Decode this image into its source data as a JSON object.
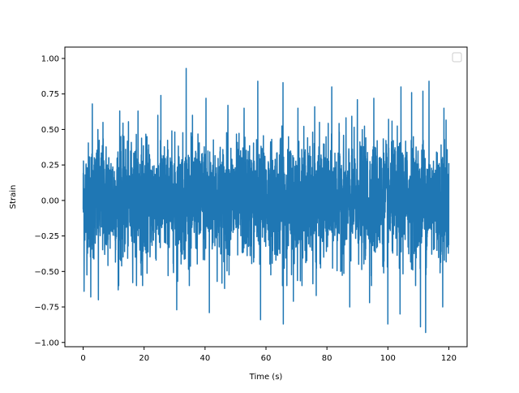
{
  "chart_data": {
    "type": "line",
    "title": "",
    "xlabel": "Time (s)",
    "ylabel": "Strain",
    "xlim": [
      -6,
      126
    ],
    "ylim": [
      -1.03,
      1.08
    ],
    "xticks": [
      0,
      20,
      40,
      60,
      80,
      100,
      120
    ],
    "xtick_labels": [
      "0",
      "20",
      "40",
      "60",
      "80",
      "100",
      "120"
    ],
    "yticks": [
      -1.0,
      -0.75,
      -0.5,
      -0.25,
      0.0,
      0.25,
      0.5,
      0.75,
      1.0
    ],
    "ytick_labels": [
      "−1.00",
      "−0.75",
      "−0.50",
      "−0.25",
      "0.00",
      "0.25",
      "0.50",
      "0.75",
      "1.00"
    ],
    "grid": false,
    "legend": {
      "position": "upper right",
      "entries": []
    },
    "series_color": "#1f77b4",
    "series": [
      {
        "x_range": [
          0,
          120
        ],
        "approx_envelope_max": 1.0,
        "approx_envelope_min": -0.93,
        "peaks": [
          {
            "x": 0.3,
            "y": 0.62
          },
          {
            "x": 3.0,
            "y": 0.68
          },
          {
            "x": 6.5,
            "y": 0.55
          },
          {
            "x": 12.0,
            "y": 0.63
          },
          {
            "x": 18.0,
            "y": 0.63
          },
          {
            "x": 25.5,
            "y": 0.74
          },
          {
            "x": 33.8,
            "y": 0.93
          },
          {
            "x": 40.3,
            "y": 0.72
          },
          {
            "x": 47.5,
            "y": 0.67
          },
          {
            "x": 52.8,
            "y": 0.65
          },
          {
            "x": 57.3,
            "y": 0.84
          },
          {
            "x": 65.6,
            "y": 0.83
          },
          {
            "x": 70.5,
            "y": 0.65
          },
          {
            "x": 76.0,
            "y": 0.66
          },
          {
            "x": 81.6,
            "y": 0.8
          },
          {
            "x": 87.5,
            "y": 0.72
          },
          {
            "x": 90.0,
            "y": 0.71
          },
          {
            "x": 95.4,
            "y": 0.72
          },
          {
            "x": 100.0,
            "y": 1.0
          },
          {
            "x": 104.3,
            "y": 0.8
          },
          {
            "x": 107.8,
            "y": 0.76
          },
          {
            "x": 111.5,
            "y": 0.77
          },
          {
            "x": 113.5,
            "y": 0.84
          },
          {
            "x": 118.4,
            "y": 0.65
          }
        ],
        "troughs": [
          {
            "x": 0.3,
            "y": -0.64
          },
          {
            "x": 2.5,
            "y": -0.68
          },
          {
            "x": 5.0,
            "y": -0.7
          },
          {
            "x": 11.5,
            "y": -0.63
          },
          {
            "x": 19.5,
            "y": -0.6
          },
          {
            "x": 30.7,
            "y": -0.77
          },
          {
            "x": 41.4,
            "y": -0.79
          },
          {
            "x": 46.4,
            "y": -0.62
          },
          {
            "x": 58.2,
            "y": -0.84
          },
          {
            "x": 65.7,
            "y": -0.87
          },
          {
            "x": 69.0,
            "y": -0.71
          },
          {
            "x": 76.5,
            "y": -0.67
          },
          {
            "x": 87.5,
            "y": -0.75
          },
          {
            "x": 94.0,
            "y": -0.72
          },
          {
            "x": 100.0,
            "y": -0.87
          },
          {
            "x": 104.0,
            "y": -0.8
          },
          {
            "x": 110.7,
            "y": -0.89
          },
          {
            "x": 112.4,
            "y": -0.93
          },
          {
            "x": 118.0,
            "y": -0.75
          }
        ]
      }
    ]
  }
}
